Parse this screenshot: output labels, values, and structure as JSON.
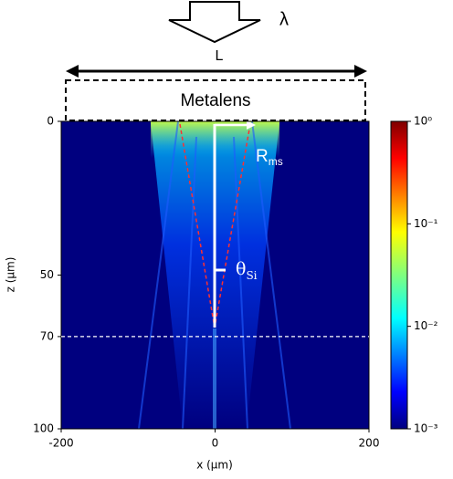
{
  "chart_data": {
    "type": "heatmap",
    "xlabel": "x (µm)",
    "ylabel": "z (µm)",
    "xlim": [
      -200,
      200
    ],
    "xticks": [
      -200,
      0,
      200
    ],
    "ylim": [
      100,
      0
    ],
    "yticks": [
      0,
      50,
      70,
      100
    ],
    "colorbar": {
      "scale": "log",
      "colormap": "jet",
      "lim": [
        0.001,
        1
      ],
      "ticks": [
        {
          "value": 1,
          "label": "10⁰"
        },
        {
          "value": 0.1,
          "label": "10⁻¹"
        },
        {
          "value": 0.01,
          "label": "10⁻²"
        },
        {
          "value": 0.001,
          "label": "10⁻³"
        }
      ]
    },
    "annotations": {
      "wavelength": "λ",
      "length": "L",
      "lens": "Metalens",
      "radius": "R",
      "radius_sub": "ms",
      "angle": "θ",
      "angle_sub": "Si"
    }
  }
}
